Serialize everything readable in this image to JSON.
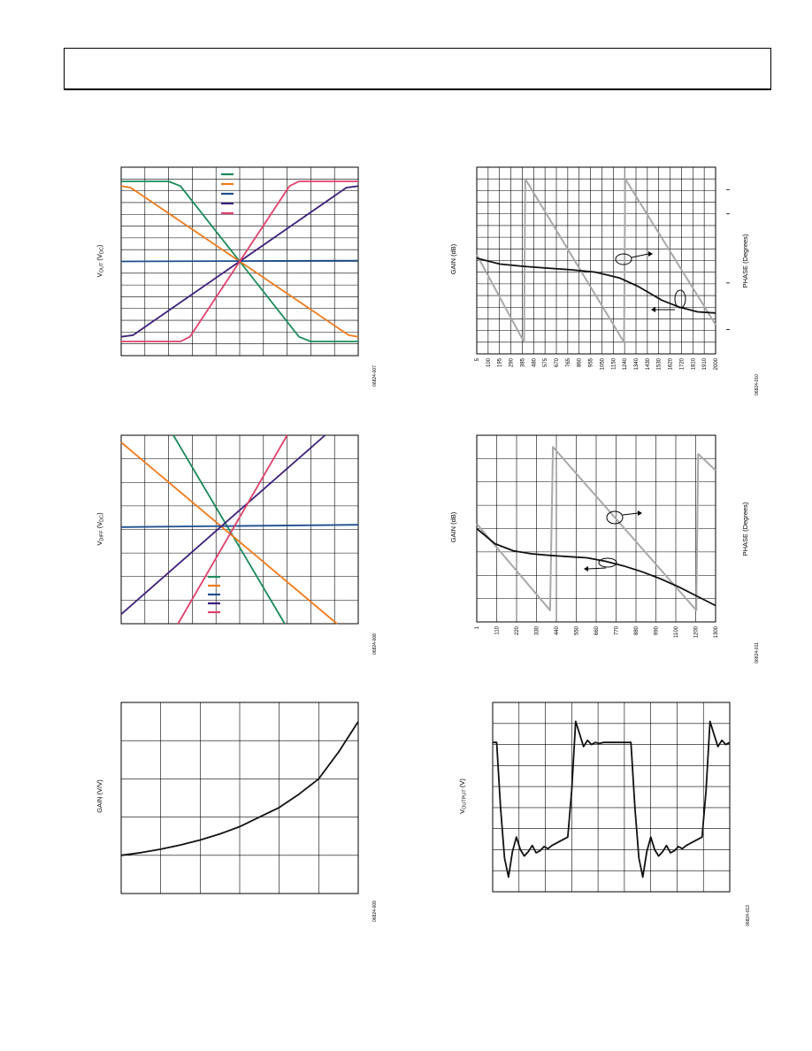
{
  "header": {
    "title": ""
  },
  "colors": {
    "green": "#1a8a5a",
    "orange": "#f07a1a",
    "blue": "#1f4e8c",
    "purple": "#3c1f7a",
    "pink": "#e0406a",
    "gray": "#a8a8a8",
    "black": "#111111"
  },
  "chart_data": [
    {
      "id": "c1",
      "type": "line",
      "ylabel_main": "V",
      "ylabel_sub": "OUT",
      "ylabel_unit": " (V",
      "ylabel_unit_sub": "DC",
      "ylabel_close": ")",
      "code": "06824-007",
      "xlim": [
        0,
        10
      ],
      "ylim": [
        0,
        12
      ],
      "legend": [
        "",
        "",
        "",
        "",
        ""
      ],
      "series": [
        {
          "color": "green",
          "x": [
            0,
            2,
            2.5,
            5,
            7.5,
            8,
            10
          ],
          "y": [
            11.1,
            11.1,
            10.8,
            6,
            1.2,
            0.9,
            0.9
          ]
        },
        {
          "color": "orange",
          "x": [
            0,
            0.4,
            5,
            9.6,
            10
          ],
          "y": [
            10.8,
            10.7,
            6,
            1.3,
            1.2
          ]
        },
        {
          "color": "blue",
          "x": [
            0,
            10
          ],
          "y": [
            6,
            6.05
          ]
        },
        {
          "color": "purple",
          "x": [
            0,
            0.5,
            5,
            9.5,
            10
          ],
          "y": [
            1.2,
            1.3,
            6,
            10.7,
            10.8
          ]
        },
        {
          "color": "pink",
          "x": [
            0,
            2.5,
            2.9,
            5,
            7.1,
            7.5,
            10
          ],
          "y": [
            0.9,
            0.9,
            1.2,
            6,
            10.8,
            11.1,
            11.1
          ]
        }
      ]
    },
    {
      "id": "c2",
      "type": "line",
      "ylabel_main": "V",
      "ylabel_sub": "DIFF",
      "ylabel_unit": " (V",
      "ylabel_unit_sub": "DC",
      "ylabel_close": ")",
      "code": "06824-008",
      "xlim": [
        0,
        10
      ],
      "ylim": [
        0,
        8
      ],
      "legend": [
        "",
        "",
        "",
        "",
        ""
      ],
      "series": [
        {
          "color": "green",
          "x": [
            2.2,
            6.9
          ],
          "y": [
            8,
            0
          ]
        },
        {
          "color": "orange",
          "x": [
            0,
            9.1
          ],
          "y": [
            7.7,
            0
          ]
        },
        {
          "color": "blue",
          "x": [
            0,
            10
          ],
          "y": [
            4.1,
            4.2
          ]
        },
        {
          "color": "purple",
          "x": [
            0,
            8.6
          ],
          "y": [
            0.4,
            8
          ]
        },
        {
          "color": "pink",
          "x": [
            2.4,
            7.0
          ],
          "y": [
            0,
            8
          ]
        }
      ]
    },
    {
      "id": "c3",
      "type": "line",
      "ylabel_main": "GAIN (V/V)",
      "code": "06824-009",
      "xlim": [
        0,
        6
      ],
      "ylim": [
        0,
        5
      ],
      "series": [
        {
          "color": "black",
          "x": [
            0,
            0.5,
            1,
            1.5,
            2,
            2.5,
            3,
            3.5,
            4,
            4.5,
            5,
            5.5,
            6
          ],
          "y": [
            1,
            1.07,
            1.16,
            1.27,
            1.4,
            1.56,
            1.75,
            2.0,
            2.25,
            2.6,
            3.0,
            3.7,
            4.5
          ]
        }
      ]
    },
    {
      "id": "c4",
      "type": "line",
      "ylabel_main": "GAIN (dB)",
      "ylabel_right": "PHASE (Degrees)",
      "code": "06824-010",
      "xlim": [
        5,
        2000
      ],
      "ylim": [
        0,
        16
      ],
      "xticks": [
        "5",
        "100",
        "195",
        "290",
        "385",
        "480",
        "575",
        "670",
        "765",
        "860",
        "955",
        "1050",
        "1150",
        "1240",
        "1340",
        "1430",
        "1530",
        "1620",
        "1720",
        "1810",
        "1910",
        "2000"
      ],
      "series": [
        {
          "color": "gray",
          "x": [
            5,
            400,
            410,
            1235,
            1245,
            2000
          ],
          "y": [
            8.5,
            1,
            15,
            1,
            15,
            2.5
          ]
        },
        {
          "color": "black",
          "x": [
            5,
            200,
            400,
            600,
            800,
            1000,
            1200,
            1350,
            1450,
            1550,
            1700,
            1850,
            2000
          ],
          "y": [
            8.2,
            7.7,
            7.5,
            7.35,
            7.2,
            7.0,
            6.5,
            5.8,
            5.2,
            4.6,
            4.0,
            3.6,
            3.5
          ]
        }
      ]
    },
    {
      "id": "c5",
      "type": "line",
      "ylabel_main": "GAIN (dB)",
      "ylabel_right": "PHASE (Degrees)",
      "code": "06824-011",
      "xlim": [
        1,
        1300
      ],
      "ylim": [
        0,
        8
      ],
      "xticks": [
        "1",
        "110",
        "220",
        "330",
        "440",
        "550",
        "660",
        "770",
        "880",
        "990",
        "1100",
        "1200",
        "1300"
      ],
      "series": [
        {
          "color": "gray",
          "x": [
            1,
            400,
            415,
            1195,
            1205,
            1300
          ],
          "y": [
            4.2,
            0.5,
            7.5,
            0.5,
            7.2,
            6.5
          ]
        },
        {
          "color": "black",
          "x": [
            1,
            100,
            200,
            300,
            400,
            500,
            600,
            700,
            800,
            900,
            1000,
            1100,
            1200,
            1300
          ],
          "y": [
            4.0,
            3.35,
            3.05,
            2.92,
            2.85,
            2.8,
            2.75,
            2.6,
            2.4,
            2.15,
            1.85,
            1.5,
            1.1,
            0.7
          ]
        }
      ]
    },
    {
      "id": "c6",
      "type": "line",
      "ylabel_main": "V",
      "ylabel_sub": "OUTPUT",
      "ylabel_unit": " (V)",
      "code": "06824-013",
      "xlim": [
        0,
        9
      ],
      "ylim": [
        0,
        9
      ],
      "series": [
        {
          "color": "black",
          "x": [
            0,
            0.15,
            0.3,
            0.45,
            0.6,
            0.75,
            0.9,
            1.05,
            1.2,
            1.35,
            1.5,
            1.65,
            1.8,
            1.95,
            2.1,
            2.25,
            2.4,
            2.55,
            2.7,
            2.85,
            3.0,
            3.15,
            3.3,
            3.45,
            3.6,
            3.75,
            3.9,
            4.05,
            4.2,
            4.35,
            4.5,
            4.65,
            4.8,
            4.95,
            5.1,
            5.25,
            5.4,
            5.55,
            5.7,
            5.85,
            6.0,
            6.15,
            6.3,
            6.45,
            6.6,
            6.75,
            6.9,
            7.05,
            7.2,
            7.35,
            7.5,
            7.65,
            7.8,
            7.95,
            8.1,
            8.25,
            8.4,
            8.55,
            8.7,
            8.85,
            9.0
          ],
          "y": [
            7.1,
            7.1,
            4.0,
            1.6,
            0.7,
            1.9,
            2.6,
            2.0,
            1.7,
            1.9,
            2.2,
            1.85,
            1.95,
            2.15,
            2.05,
            2.2,
            2.3,
            2.4,
            2.5,
            2.6,
            4.8,
            8.1,
            7.5,
            6.9,
            7.2,
            7.0,
            7.1,
            7.05,
            7.1,
            7.1,
            7.1,
            7.1,
            7.1,
            7.1,
            7.1,
            7.1,
            4.0,
            1.6,
            0.7,
            1.9,
            2.6,
            2.0,
            1.7,
            1.9,
            2.2,
            1.85,
            1.95,
            2.15,
            2.05,
            2.2,
            2.3,
            2.4,
            2.5,
            2.6,
            4.8,
            8.1,
            7.5,
            6.9,
            7.2,
            7.0,
            7.1
          ]
        }
      ]
    }
  ]
}
